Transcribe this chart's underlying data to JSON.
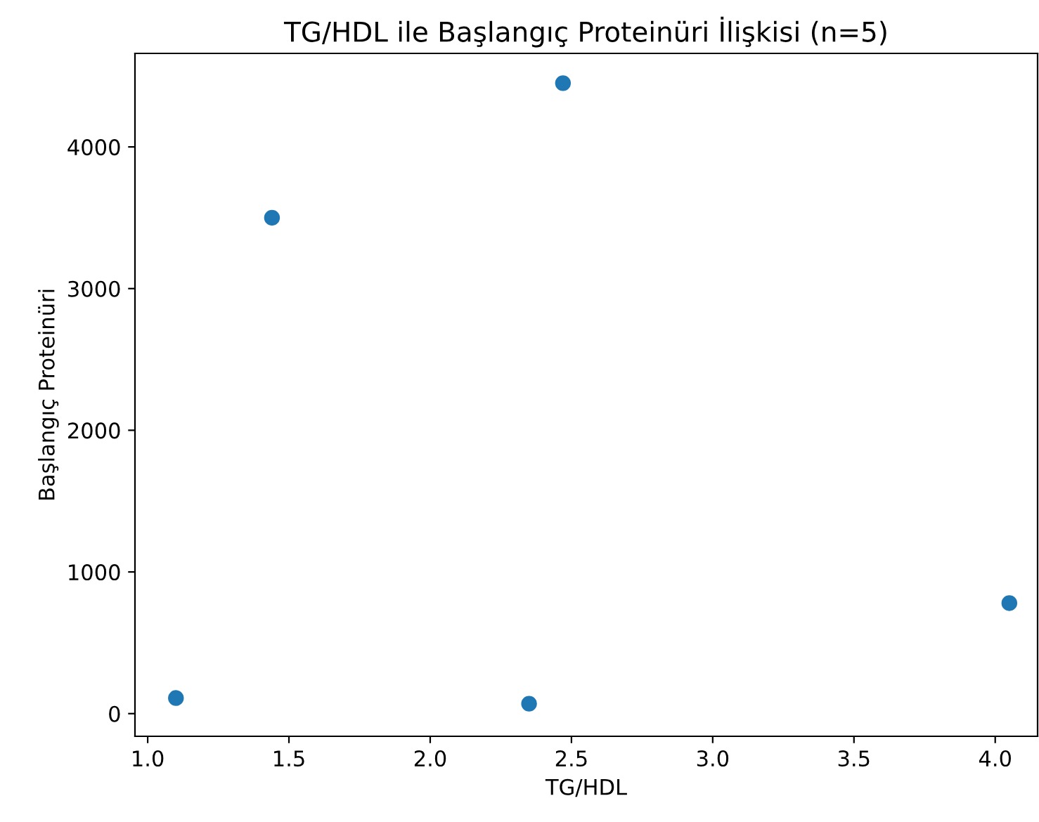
{
  "chart_data": {
    "type": "scatter",
    "title": "TG/HDL ile Başlangıç Proteinüri İlişkisi (n=5)",
    "xlabel": "TG/HDL",
    "ylabel": "Başlangıç Proteinüri",
    "x": [
      1.1,
      1.44,
      2.47,
      2.35,
      4.05
    ],
    "values": [
      110,
      3500,
      4450,
      70,
      780
    ],
    "color": "#1f77b4",
    "marker": "circle",
    "xlim": [
      0.955,
      4.15
    ],
    "ylim": [
      -160,
      4660
    ],
    "xticks": [
      {
        "value": 1.0,
        "label": "1.0"
      },
      {
        "value": 1.5,
        "label": "1.5"
      },
      {
        "value": 2.0,
        "label": "2.0"
      },
      {
        "value": 2.5,
        "label": "2.5"
      },
      {
        "value": 3.0,
        "label": "3.0"
      },
      {
        "value": 3.5,
        "label": "3.5"
      },
      {
        "value": 4.0,
        "label": "4.0"
      }
    ],
    "yticks": [
      0,
      1000,
      2000,
      3000,
      4000
    ],
    "grid": false
  }
}
